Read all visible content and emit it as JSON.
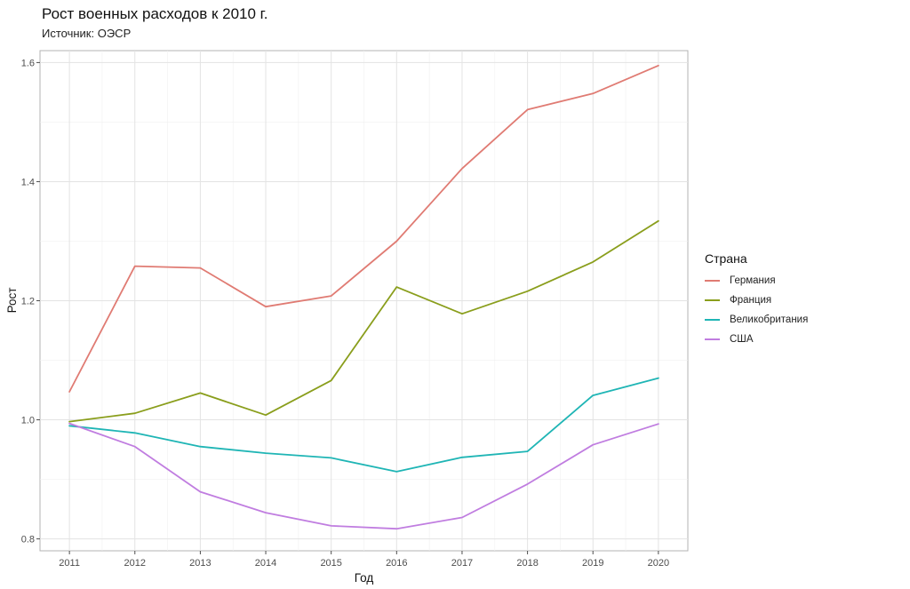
{
  "chart_data": {
    "type": "line",
    "title": "Рост военных расходов к 2010 г.",
    "subtitle": "Источник: ОЭСР",
    "xlabel": "Год",
    "ylabel": "Рост",
    "x": [
      2011,
      2012,
      2013,
      2014,
      2015,
      2016,
      2017,
      2018,
      2019,
      2020
    ],
    "x_tick_labels": [
      "2011",
      "2012",
      "2013",
      "2014",
      "2015",
      "2016",
      "2017",
      "2018",
      "2019",
      "2020"
    ],
    "y_ticks": [
      0.8,
      1.0,
      1.2,
      1.4,
      1.6
    ],
    "y_tick_labels": [
      "0.8",
      "1.0",
      "1.2",
      "1.4",
      "1.6"
    ],
    "xlim": [
      2010.55,
      2020.45
    ],
    "ylim": [
      0.78,
      1.62
    ],
    "grid": true,
    "legend_title": "Страна",
    "legend_position": "right",
    "series": [
      {
        "name": "Германия",
        "color": "#e07b73",
        "values": [
          1.047,
          1.258,
          1.255,
          1.19,
          1.208,
          1.3,
          1.422,
          1.521,
          1.548,
          1.595
        ]
      },
      {
        "name": "Франция",
        "color": "#8a9e1c",
        "values": [
          0.997,
          1.011,
          1.045,
          1.008,
          1.066,
          1.223,
          1.178,
          1.216,
          1.265,
          1.334
        ]
      },
      {
        "name": "Великобритания",
        "color": "#1fb5b5",
        "values": [
          0.99,
          0.978,
          0.955,
          0.944,
          0.936,
          0.913,
          0.937,
          0.947,
          1.041,
          1.07
        ]
      },
      {
        "name": "США",
        "color": "#c07de0",
        "values": [
          0.994,
          0.955,
          0.879,
          0.844,
          0.822,
          0.817,
          0.836,
          0.892,
          0.958,
          0.993
        ]
      }
    ]
  }
}
